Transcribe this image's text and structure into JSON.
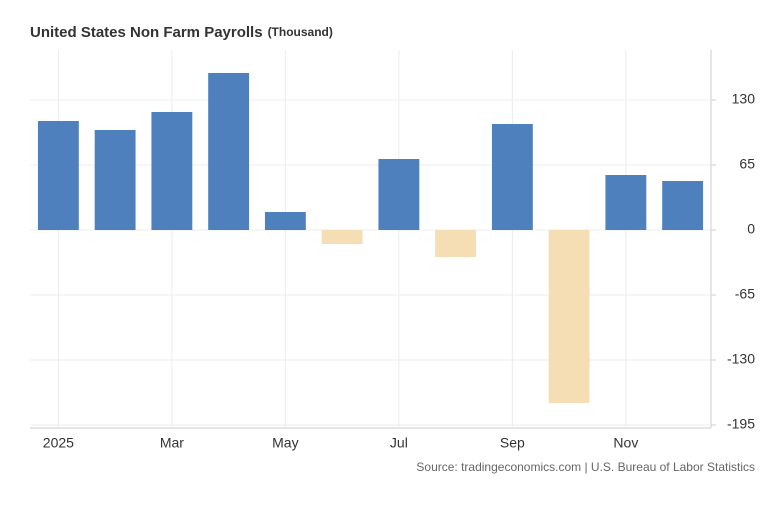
{
  "chart_data": {
    "type": "bar",
    "title": "United States Non Farm Payrolls",
    "unit": "(Thousand)",
    "source": "Source: tradingeconomics.com | U.S. Bureau of Labor Statistics",
    "categories": [
      "2025",
      null,
      "Mar",
      null,
      "May",
      null,
      "Jul",
      null,
      "Sep",
      null,
      "Nov",
      null
    ],
    "values": [
      109,
      100,
      118,
      157,
      18,
      -14,
      71,
      -27,
      106,
      -173,
      55,
      49
    ],
    "color": "#4e80bd",
    "negative_color": "#f5deb3",
    "ylim": [
      -198,
      180
    ],
    "yticks": [
      -195,
      -130,
      -65,
      0,
      65,
      130
    ],
    "grid": true
  }
}
